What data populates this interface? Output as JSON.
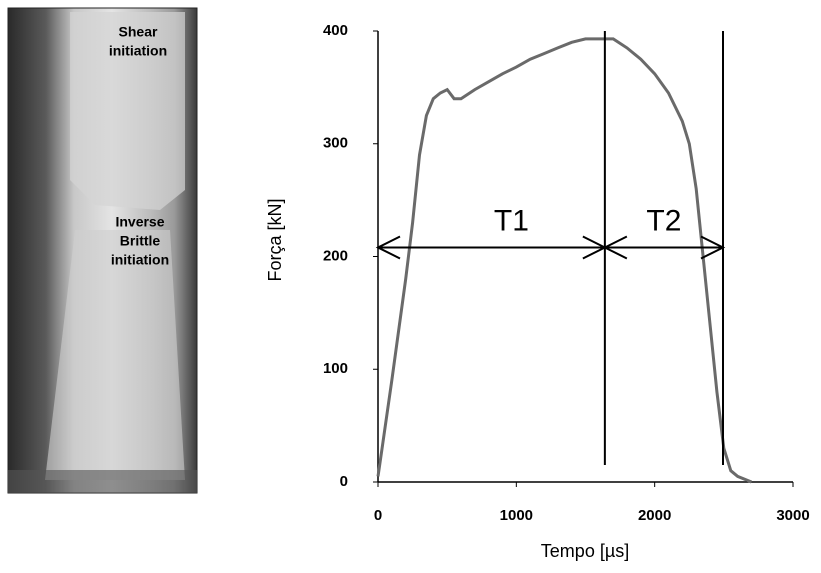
{
  "photo": {
    "labels": [
      [
        "Shear",
        "initiation"
      ],
      [
        "Inverse",
        "Brittle",
        "initiation"
      ]
    ]
  },
  "chart_data": {
    "type": "line",
    "x_label": "Tempo [µs]",
    "y_label": "Força [kN]",
    "x": [
      0,
      30,
      100,
      200,
      250,
      300,
      350,
      400,
      450,
      500,
      550,
      600,
      700,
      800,
      900,
      1000,
      1100,
      1200,
      1300,
      1400,
      1500,
      1600,
      1700,
      1800,
      1900,
      2000,
      2100,
      2200,
      2250,
      2300,
      2350,
      2400,
      2450,
      2500,
      2550,
      2600,
      2700
    ],
    "values": [
      5,
      30,
      90,
      180,
      230,
      290,
      325,
      340,
      345,
      348,
      340,
      340,
      348,
      355,
      362,
      368,
      375,
      380,
      385,
      390,
      393,
      393,
      393,
      385,
      375,
      362,
      345,
      320,
      300,
      260,
      200,
      140,
      80,
      30,
      10,
      5,
      0
    ],
    "color": "#6a6a6a",
    "xlim": [
      0,
      3000
    ],
    "ylim": [
      0,
      400
    ],
    "xticks": [
      0,
      1000,
      2000,
      3000
    ],
    "yticks": [
      0,
      100,
      200,
      300,
      400
    ],
    "vlines": [
      1640,
      2494
    ],
    "arrows": [
      {
        "label": "T1",
        "from": 0,
        "to": 1640,
        "y": 208
      },
      {
        "label": "T2",
        "from": 1640,
        "to": 2494,
        "y": 208
      }
    ]
  }
}
